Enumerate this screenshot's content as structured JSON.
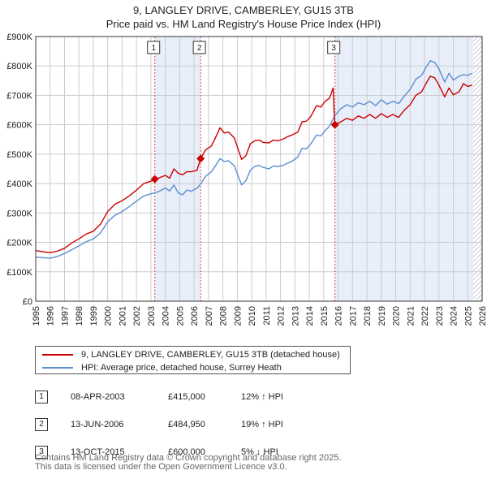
{
  "title_line1": "9, LANGLEY DRIVE, CAMBERLEY, GU15 3TB",
  "title_line2": "Price paid vs. HM Land Registry's House Price Index (HPI)",
  "legend": {
    "property_label": "9, LANGLEY DRIVE, CAMBERLEY, GU15 3TB (detached house)",
    "hpi_label": "HPI: Average price, detached house, Surrey Heath"
  },
  "sales": [
    {
      "num": "1",
      "date": "08-APR-2003",
      "price": "£415,000",
      "hpi": "12% ↑ HPI"
    },
    {
      "num": "2",
      "date": "13-JUN-2006",
      "price": "£484,950",
      "hpi": "19% ↑ HPI"
    },
    {
      "num": "3",
      "date": "13-OCT-2015",
      "price": "£600,000",
      "hpi": "5% ↓ HPI"
    }
  ],
  "footer_line1": "Contains HM Land Registry data © Crown copyright and database right 2025.",
  "footer_line2": "This data is licensed under the Open Government Licence v3.0.",
  "chart_data": {
    "type": "line",
    "title": "9, LANGLEY DRIVE, CAMBERLEY, GU15 3TB — Price paid vs. HM Land Registry's House Price Index (HPI)",
    "xlabel": "",
    "ylabel": "",
    "xlim": [
      1995,
      2026
    ],
    "ylim": [
      0,
      900000
    ],
    "x_ticks": [
      "1995",
      "1996",
      "1997",
      "1998",
      "1999",
      "2000",
      "2001",
      "2002",
      "2003",
      "2004",
      "2005",
      "2006",
      "2007",
      "2008",
      "2009",
      "2010",
      "2011",
      "2012",
      "2013",
      "2014",
      "2015",
      "2016",
      "2017",
      "2018",
      "2019",
      "2020",
      "2021",
      "2022",
      "2023",
      "2024",
      "2025",
      "2026"
    ],
    "y_ticks": [
      {
        "value": 0,
        "label": "£0"
      },
      {
        "value": 100000,
        "label": "£100K"
      },
      {
        "value": 200000,
        "label": "£200K"
      },
      {
        "value": 300000,
        "label": "£300K"
      },
      {
        "value": 400000,
        "label": "£400K"
      },
      {
        "value": 500000,
        "label": "£500K"
      },
      {
        "value": 600000,
        "label": "£600K"
      },
      {
        "value": 700000,
        "label": "£700K"
      },
      {
        "value": 800000,
        "label": "£800K"
      },
      {
        "value": 900000,
        "label": "£900K"
      }
    ],
    "grid": true,
    "colors": {
      "property": "#cc0000",
      "hpi": "#5b8fd0",
      "shade": "#e8eefa",
      "hatch": "#999999"
    },
    "series": [
      {
        "name": "9, LANGLEY DRIVE, CAMBERLEY, GU15 3TB (detached house)",
        "color": "#cc0000",
        "points": [
          [
            1995.0,
            172000
          ],
          [
            1995.5,
            168000
          ],
          [
            1996.0,
            165000
          ],
          [
            1996.5,
            170000
          ],
          [
            1997.0,
            180000
          ],
          [
            1997.5,
            198000
          ],
          [
            1998.0,
            212000
          ],
          [
            1998.5,
            228000
          ],
          [
            1999.0,
            238000
          ],
          [
            1999.5,
            262000
          ],
          [
            2000.0,
            305000
          ],
          [
            2000.5,
            330000
          ],
          [
            2001.0,
            342000
          ],
          [
            2001.5,
            358000
          ],
          [
            2002.0,
            378000
          ],
          [
            2002.5,
            400000
          ],
          [
            2003.0,
            408000
          ],
          [
            2003.27,
            415000
          ],
          [
            2003.6,
            420000
          ],
          [
            2004.0,
            428000
          ],
          [
            2004.3,
            418000
          ],
          [
            2004.6,
            450000
          ],
          [
            2004.9,
            435000
          ],
          [
            2005.2,
            430000
          ],
          [
            2005.5,
            440000
          ],
          [
            2005.8,
            440000
          ],
          [
            2006.2,
            445000
          ],
          [
            2006.45,
            484950
          ],
          [
            2006.8,
            515000
          ],
          [
            2007.2,
            528000
          ],
          [
            2007.5,
            558000
          ],
          [
            2007.8,
            590000
          ],
          [
            2008.1,
            572000
          ],
          [
            2008.4,
            575000
          ],
          [
            2008.8,
            555000
          ],
          [
            2009.1,
            510000
          ],
          [
            2009.3,
            482000
          ],
          [
            2009.6,
            495000
          ],
          [
            2009.9,
            535000
          ],
          [
            2010.2,
            545000
          ],
          [
            2010.5,
            548000
          ],
          [
            2010.8,
            540000
          ],
          [
            2011.2,
            538000
          ],
          [
            2011.5,
            548000
          ],
          [
            2011.8,
            545000
          ],
          [
            2012.2,
            552000
          ],
          [
            2012.5,
            560000
          ],
          [
            2012.8,
            565000
          ],
          [
            2013.2,
            575000
          ],
          [
            2013.5,
            610000
          ],
          [
            2013.8,
            612000
          ],
          [
            2014.1,
            628000
          ],
          [
            2014.5,
            665000
          ],
          [
            2014.8,
            660000
          ],
          [
            2015.1,
            680000
          ],
          [
            2015.4,
            690000
          ],
          [
            2015.65,
            725000
          ],
          [
            2015.72,
            645000
          ],
          [
            2015.78,
            600000
          ],
          [
            2016.2,
            610000
          ],
          [
            2016.6,
            622000
          ],
          [
            2017.0,
            615000
          ],
          [
            2017.4,
            630000
          ],
          [
            2017.8,
            622000
          ],
          [
            2018.2,
            635000
          ],
          [
            2018.6,
            622000
          ],
          [
            2019.0,
            638000
          ],
          [
            2019.4,
            625000
          ],
          [
            2019.8,
            635000
          ],
          [
            2020.2,
            625000
          ],
          [
            2020.6,
            650000
          ],
          [
            2021.0,
            668000
          ],
          [
            2021.4,
            700000
          ],
          [
            2021.8,
            712000
          ],
          [
            2022.1,
            740000
          ],
          [
            2022.4,
            765000
          ],
          [
            2022.7,
            760000
          ],
          [
            2023.0,
            735000
          ],
          [
            2023.4,
            695000
          ],
          [
            2023.7,
            725000
          ],
          [
            2024.0,
            702000
          ],
          [
            2024.4,
            712000
          ],
          [
            2024.7,
            740000
          ],
          [
            2025.0,
            730000
          ],
          [
            2025.3,
            735000
          ]
        ]
      },
      {
        "name": "HPI: Average price, detached house, Surrey Heath",
        "color": "#5b8fd0",
        "points": [
          [
            1995.0,
            150000
          ],
          [
            1995.5,
            148000
          ],
          [
            1996.0,
            146000
          ],
          [
            1996.5,
            152000
          ],
          [
            1997.0,
            162000
          ],
          [
            1997.5,
            175000
          ],
          [
            1998.0,
            188000
          ],
          [
            1998.5,
            202000
          ],
          [
            1999.0,
            212000
          ],
          [
            1999.5,
            232000
          ],
          [
            2000.0,
            270000
          ],
          [
            2000.5,
            292000
          ],
          [
            2001.0,
            305000
          ],
          [
            2001.5,
            322000
          ],
          [
            2002.0,
            340000
          ],
          [
            2002.5,
            358000
          ],
          [
            2003.0,
            365000
          ],
          [
            2003.5,
            372000
          ],
          [
            2004.0,
            385000
          ],
          [
            2004.3,
            375000
          ],
          [
            2004.6,
            395000
          ],
          [
            2004.9,
            368000
          ],
          [
            2005.2,
            362000
          ],
          [
            2005.5,
            378000
          ],
          [
            2005.8,
            374000
          ],
          [
            2006.2,
            384000
          ],
          [
            2006.5,
            402000
          ],
          [
            2006.8,
            425000
          ],
          [
            2007.2,
            440000
          ],
          [
            2007.5,
            462000
          ],
          [
            2007.8,
            485000
          ],
          [
            2008.1,
            475000
          ],
          [
            2008.4,
            478000
          ],
          [
            2008.8,
            460000
          ],
          [
            2009.1,
            420000
          ],
          [
            2009.3,
            395000
          ],
          [
            2009.6,
            410000
          ],
          [
            2009.9,
            445000
          ],
          [
            2010.2,
            458000
          ],
          [
            2010.5,
            462000
          ],
          [
            2010.8,
            455000
          ],
          [
            2011.2,
            450000
          ],
          [
            2011.5,
            460000
          ],
          [
            2011.8,
            458000
          ],
          [
            2012.2,
            462000
          ],
          [
            2012.5,
            470000
          ],
          [
            2012.8,
            476000
          ],
          [
            2013.2,
            490000
          ],
          [
            2013.5,
            520000
          ],
          [
            2013.8,
            518000
          ],
          [
            2014.1,
            535000
          ],
          [
            2014.5,
            565000
          ],
          [
            2014.8,
            562000
          ],
          [
            2015.1,
            580000
          ],
          [
            2015.4,
            595000
          ],
          [
            2015.78,
            632000
          ],
          [
            2016.2,
            655000
          ],
          [
            2016.6,
            668000
          ],
          [
            2017.0,
            660000
          ],
          [
            2017.4,
            675000
          ],
          [
            2017.8,
            668000
          ],
          [
            2018.2,
            680000
          ],
          [
            2018.6,
            665000
          ],
          [
            2019.0,
            685000
          ],
          [
            2019.4,
            670000
          ],
          [
            2019.8,
            680000
          ],
          [
            2020.2,
            672000
          ],
          [
            2020.6,
            698000
          ],
          [
            2021.0,
            720000
          ],
          [
            2021.4,
            755000
          ],
          [
            2021.8,
            768000
          ],
          [
            2022.1,
            795000
          ],
          [
            2022.4,
            818000
          ],
          [
            2022.7,
            812000
          ],
          [
            2023.0,
            790000
          ],
          [
            2023.4,
            745000
          ],
          [
            2023.7,
            775000
          ],
          [
            2024.0,
            752000
          ],
          [
            2024.4,
            765000
          ],
          [
            2024.7,
            770000
          ],
          [
            2025.0,
            768000
          ],
          [
            2025.3,
            775000
          ]
        ]
      }
    ],
    "sale_markers": [
      {
        "label": "1",
        "x": 2003.27,
        "y": 415000
      },
      {
        "label": "2",
        "x": 2006.45,
        "y": 484950
      },
      {
        "label": "3",
        "x": 2015.78,
        "y": 600000
      }
    ],
    "shaded_ranges": [
      [
        2003.27,
        2006.45
      ],
      [
        2015.78,
        2025.4
      ]
    ],
    "hatched_range": [
      2025.4,
      2026
    ]
  }
}
